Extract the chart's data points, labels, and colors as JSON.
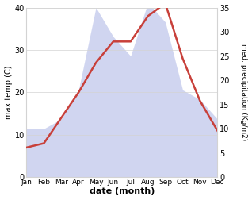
{
  "months": [
    "Jan",
    "Feb",
    "Mar",
    "Apr",
    "May",
    "Jun",
    "Jul",
    "Aug",
    "Sep",
    "Oct",
    "Nov",
    "Dec"
  ],
  "temperature": [
    7,
    8,
    14,
    20,
    27,
    32,
    32,
    38,
    41,
    28,
    18,
    11
  ],
  "precipitation": [
    10,
    10,
    12,
    18,
    35,
    29,
    25,
    36,
    32,
    18,
    16,
    12
  ],
  "temp_color": "#c8403a",
  "precip_fill_color": "#c8ceee",
  "precip_edge_color": "#c8ceee",
  "temp_ylim": [
    0,
    40
  ],
  "precip_ylim": [
    0,
    35
  ],
  "temp_yticks": [
    0,
    10,
    20,
    30,
    40
  ],
  "precip_yticks": [
    0,
    5,
    10,
    15,
    20,
    25,
    30,
    35
  ],
  "xlabel": "date (month)",
  "ylabel_left": "max temp (C)",
  "ylabel_right": "med. precipitation (Kg/m2)",
  "fig_width": 3.18,
  "fig_height": 2.52,
  "dpi": 100
}
